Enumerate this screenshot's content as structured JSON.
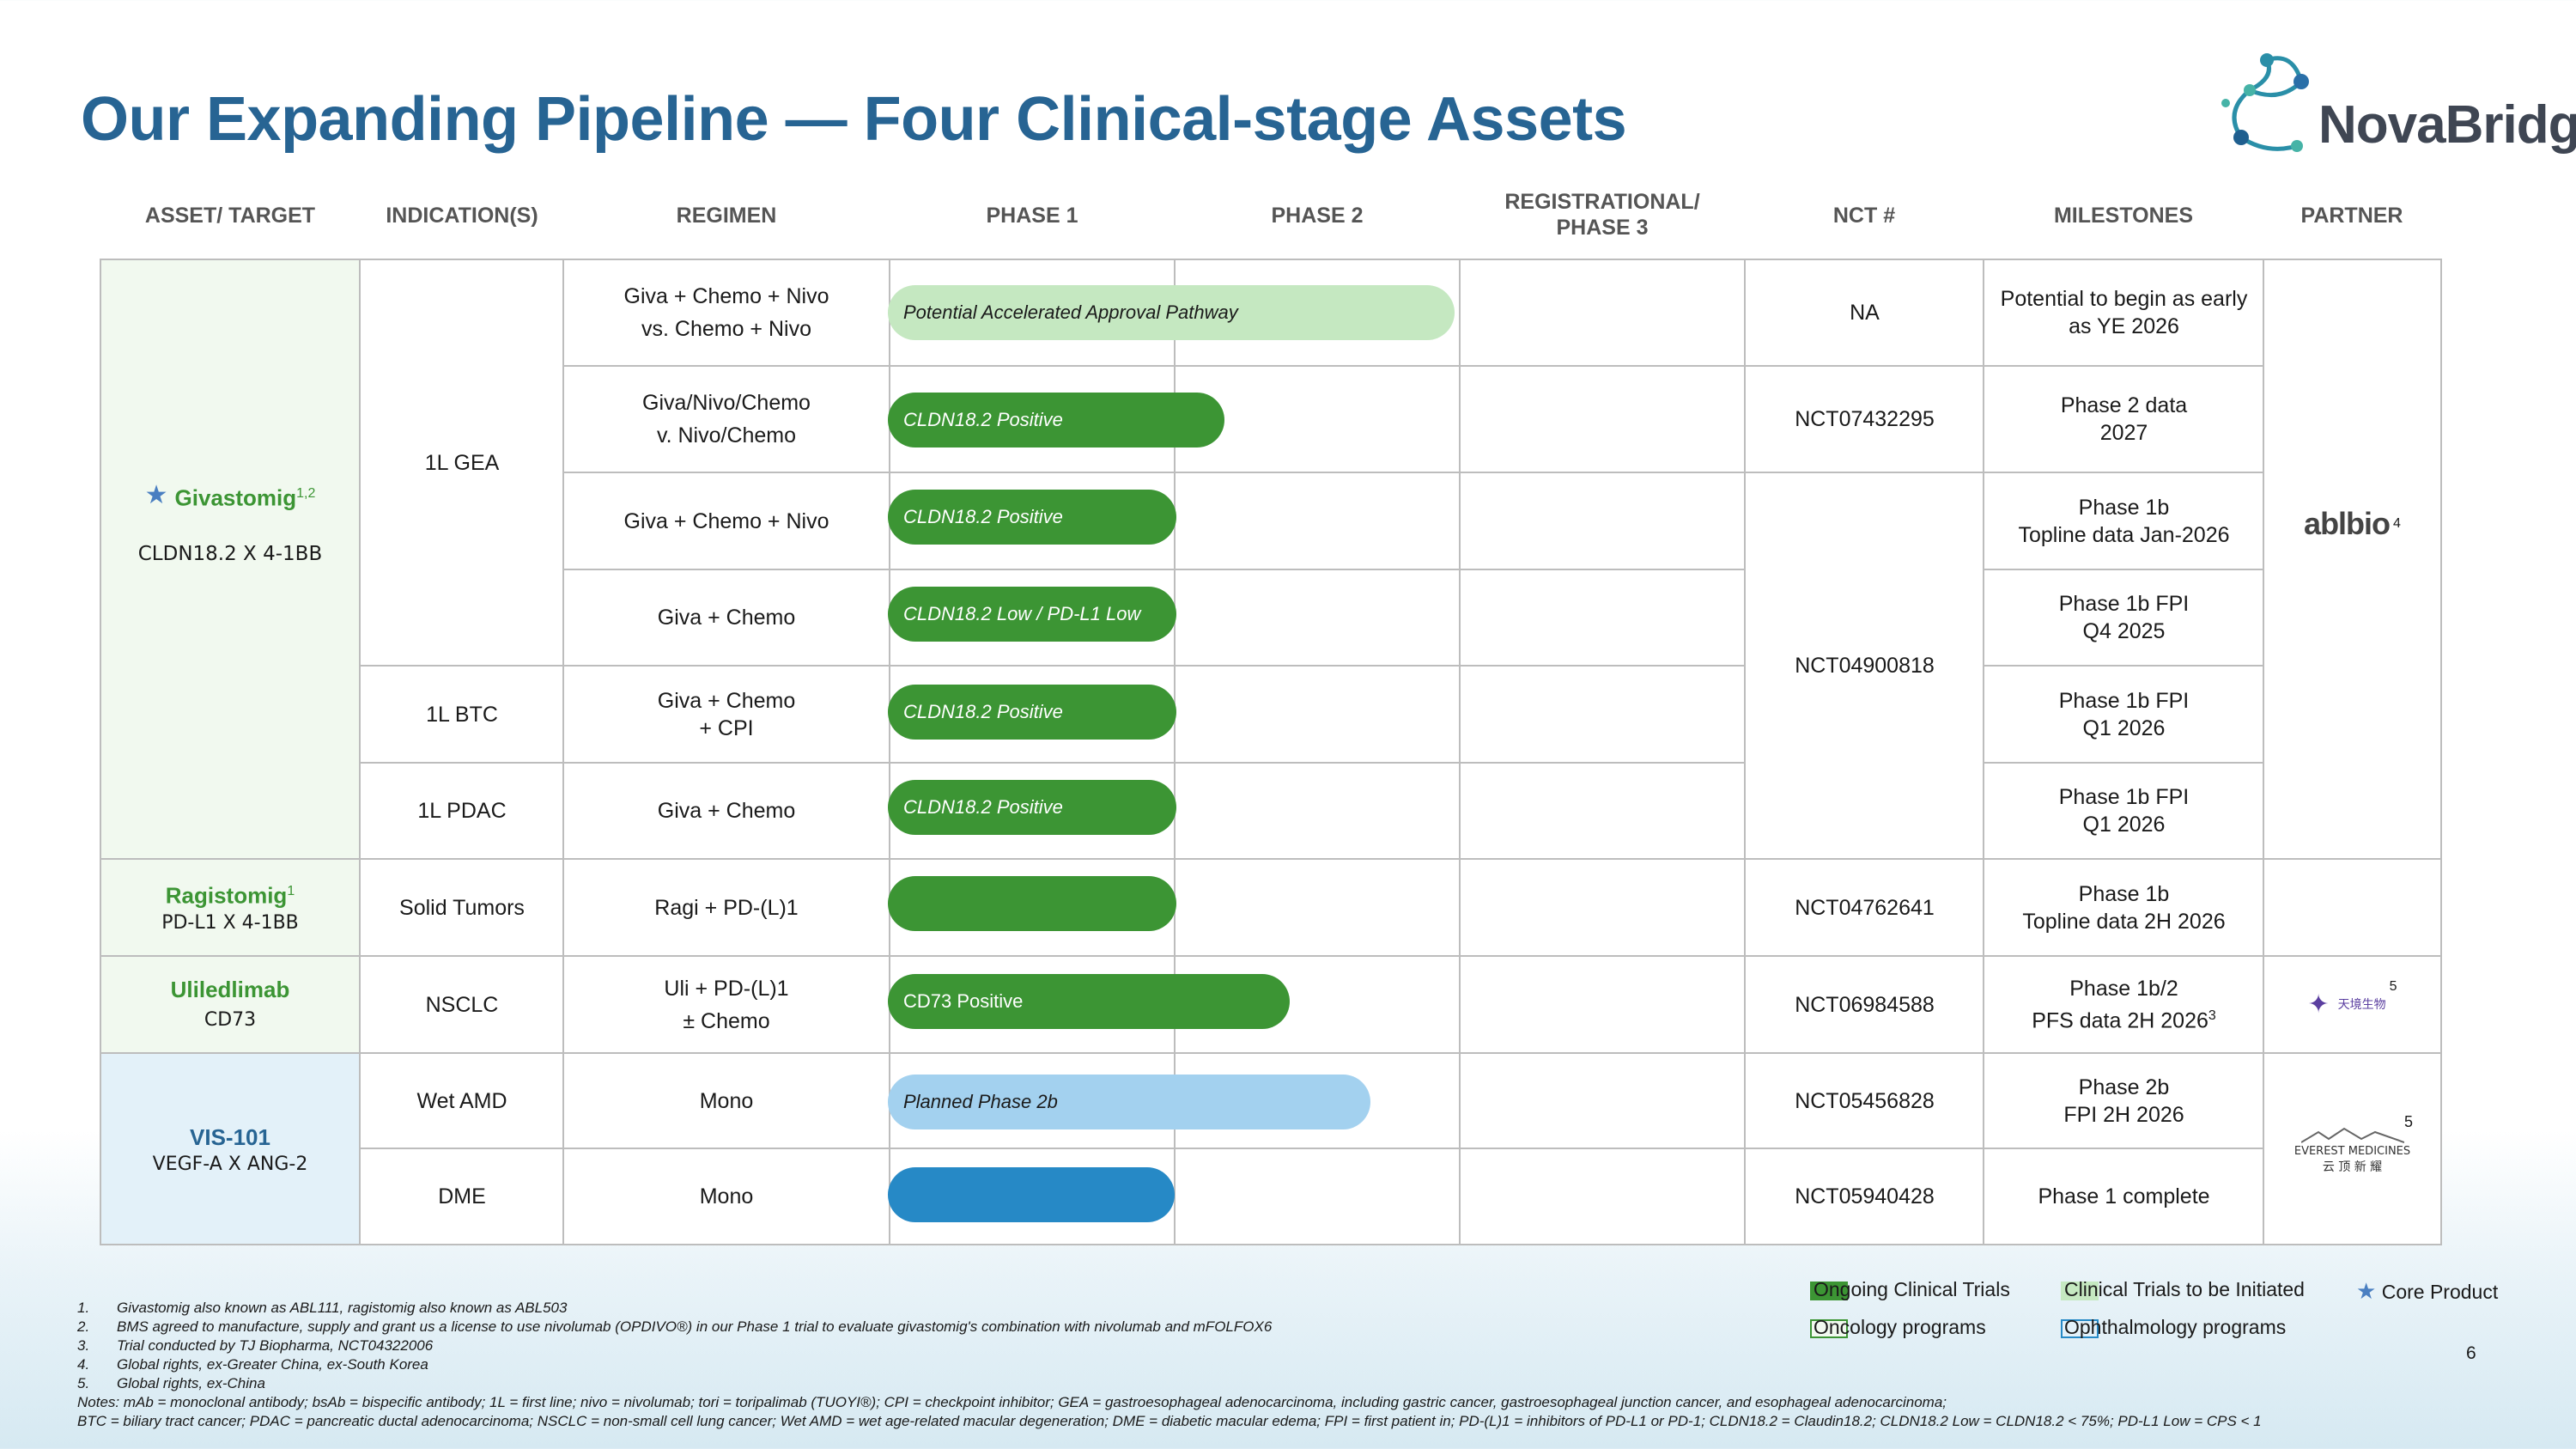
{
  "title": "Our Expanding Pipeline — Four Clinical-stage Assets",
  "logo": {
    "text": "NovaBridge"
  },
  "headers": {
    "asset": "ASSET/ TARGET",
    "indication": "INDICATION(S)",
    "regimen": "REGIMEN",
    "phase1": "PHASE 1",
    "phase2": "PHASE 2",
    "phase3_line1": "REGISTRATIONAL/",
    "phase3_line2": "PHASE 3",
    "nct": "NCT #",
    "milestones": "MILESTONES",
    "partner": "PARTNER"
  },
  "assets": {
    "giva": {
      "name": "Givastomig",
      "sup": "1,2",
      "target": "CLDN18.2 X 4-1BB"
    },
    "ragi": {
      "name": "Ragistomig",
      "sup": "1",
      "target": "PD-L1 X 4-1BB"
    },
    "uli": {
      "name": "Uliledlimab",
      "target": "CD73"
    },
    "vis": {
      "name": "VIS-101",
      "target": "VEGF-A X ANG-2"
    }
  },
  "indications": {
    "gea": "1L GEA",
    "btc": "1L BTC",
    "pdac": "1L PDAC",
    "solid": "Solid Tumors",
    "nsclc": "NSCLC",
    "wetamd": "Wet AMD",
    "dme": "DME"
  },
  "rows": [
    {
      "regimen_l1": "Giva + Chemo + Nivo",
      "regimen_l2": "vs. Chemo + Nivo",
      "bar": "Potential Accelerated Approval Pathway",
      "nct": "NA",
      "m1": "Potential to begin as early",
      "m2": "as YE 2026"
    },
    {
      "regimen_l1": "Giva/Nivo/Chemo",
      "regimen_l2": "v. Nivo/Chemo",
      "bar": "CLDN18.2 Positive",
      "nct": "NCT07432295",
      "m1": "Phase 2 data",
      "m2": "2027"
    },
    {
      "regimen_l1": "Giva + Chemo + Nivo",
      "bar": "CLDN18.2 Positive",
      "m1": "Phase 1b",
      "m2": "Topline data Jan-2026"
    },
    {
      "regimen_l1": "Giva + Chemo",
      "bar": "CLDN18.2 Low / PD-L1 Low",
      "m1": "Phase 1b FPI",
      "m2": "Q4 2025"
    },
    {
      "regimen_l1": "Giva + Chemo",
      "regimen_l2": "+ CPI",
      "bar": "CLDN18.2 Positive",
      "m1": "Phase 1b FPI",
      "m2": "Q1 2026"
    },
    {
      "regimen_l1": "Giva + Chemo",
      "bar": "CLDN18.2 Positive",
      "m1": "Phase 1b FPI",
      "m2": "Q1 2026"
    },
    {
      "regimen_l1": "Ragi + PD-(L)1",
      "bar": "",
      "nct": "NCT04762641",
      "m1": "Phase 1b",
      "m2": "Topline data 2H 2026"
    },
    {
      "regimen_l1": "Uli + PD-(L)1",
      "regimen_l2": "± Chemo",
      "bar": "CD73 Positive",
      "nct": "NCT06984588",
      "m1": "Phase 1b/2",
      "m2": "PFS data 2H 2026",
      "m2_sup": "3"
    },
    {
      "regimen_l1": "Mono",
      "bar": "Planned Phase 2b",
      "nct": "NCT05456828",
      "m1": "Phase 2b",
      "m2": "FPI 2H 2026"
    },
    {
      "regimen_l1": "Mono",
      "bar": "",
      "nct": "NCT05940428",
      "m1": "Phase 1 complete"
    }
  ],
  "giva_shared_nct": "NCT04900818",
  "partners": {
    "abl": "ablbio",
    "abl_sup": "4",
    "tj": "天境生物",
    "tj_sup": "5",
    "everest_en": "EVEREST MEDICINES",
    "everest_cn": "云 顶 新 耀",
    "everest_sup": "5"
  },
  "legend": {
    "ongoing": "Ongoing Clinical Trials",
    "initiated": "Clinical Trials to be Initiated",
    "core": "Core Product",
    "oncology": "Oncology programs",
    "ophthalmology": "Ophthalmology programs"
  },
  "colors": {
    "title_blue": "#276493",
    "asset_green": "#3c9534",
    "dark_green_bar": "#3c9534",
    "light_green_bar": "#c5e8c1",
    "dark_blue_bar": "#2689c6",
    "light_blue_bar": "#a3d1ef",
    "oncology_bg": "#f1f9ef",
    "ophthalmology_bg": "#e3f1f9"
  },
  "footnotes": [
    {
      "num": "1.",
      "text": "Givastomig also known as ABL111, ragistomig also known as ABL503"
    },
    {
      "num": "2.",
      "text": "BMS agreed to manufacture, supply and grant us a license to use nivolumab (OPDIVO®) in our Phase 1 trial to evaluate givastomig's combination with nivolumab and mFOLFOX6"
    },
    {
      "num": "3.",
      "text": "Trial conducted by TJ Biopharma, NCT04322006"
    },
    {
      "num": "4.",
      "text": "Global rights, ex-Greater China, ex-South Korea"
    },
    {
      "num": "5.",
      "text": "Global rights, ex-China"
    }
  ],
  "notes_l1": "Notes: mAb = monoclonal antibody; bsAb = bispecific antibody; 1L = first line; nivo = nivolumab; tori = toripalimab (TUOYI®); CPI = checkpoint inhibitor; GEA = gastroesophageal adenocarcinoma, including gastric cancer, gastroesophageal junction cancer, and esophageal adenocarcinoma;",
  "notes_l2": "BTC = biliary tract cancer; PDAC = pancreatic ductal adenocarcinoma; NSCLC = non-small cell lung cancer; Wet AMD = wet age-related macular degeneration; DME = diabetic macular edema; FPI = first patient in; PD-(L)1 = inhibitors of PD-L1 or PD-1; CLDN18.2 = Claudin18.2; CLDN18.2 Low = CLDN18.2 < 75%; PD-L1 Low = CPS < 1",
  "page_number": "6"
}
